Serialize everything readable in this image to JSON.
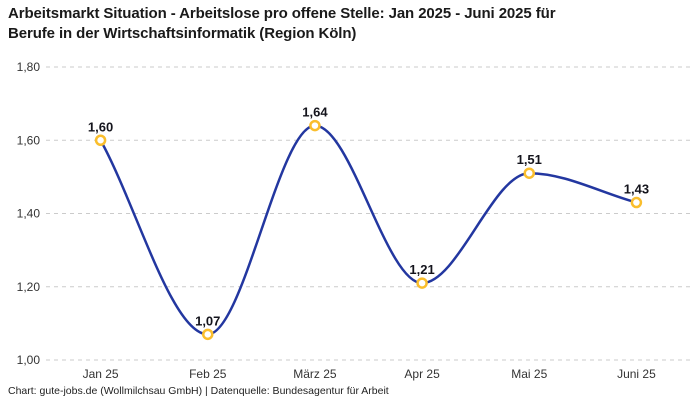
{
  "header": {
    "title": "Arbeitsmarkt Situation - Arbeitslose pro offene Stelle: Jan 2025 - Juni 2025 für\nBerufe in der Wirtschaftsinformatik (Region Köln)"
  },
  "footer": {
    "credit": "Chart: gute-jobs.de (Wollmilchsau GmbH) | Datenquelle: Bundesagentur für Arbeit"
  },
  "chart_data": {
    "type": "line",
    "title": "Arbeitsmarkt Situation - Arbeitslose pro offene Stelle: Jan 2025 - Juni 2025 für Berufe in der Wirtschaftsinformatik (Region Köln)",
    "categories": [
      "Jan 25",
      "Feb 25",
      "März 25",
      "Apr 25",
      "Mai 25",
      "Juni 25"
    ],
    "values": [
      1.6,
      1.07,
      1.64,
      1.21,
      1.51,
      1.43
    ],
    "point_labels": [
      "1,60",
      "1,07",
      "1,64",
      "1,21",
      "1,51",
      "1,43"
    ],
    "xlabel": "",
    "ylabel": "",
    "ylim": [
      1.0,
      1.8
    ],
    "yticks": [
      {
        "value": 1.0,
        "label": "1,00"
      },
      {
        "value": 1.2,
        "label": "1,20"
      },
      {
        "value": 1.4,
        "label": "1,40"
      },
      {
        "value": 1.6,
        "label": "1,60"
      },
      {
        "value": 1.8,
        "label": "1,80"
      }
    ],
    "grid": "horizontal-dashed",
    "legend": "none",
    "curve": "smooth",
    "colors": {
      "line": "#2337a0",
      "marker_stroke": "#fabe2d",
      "marker_fill": "#ffffff",
      "grid": "#cbcbcb",
      "axis_text": "#333333",
      "point_label_text": "#14141c",
      "title_text": "#1a1a1a",
      "footer_text": "#222222"
    }
  }
}
